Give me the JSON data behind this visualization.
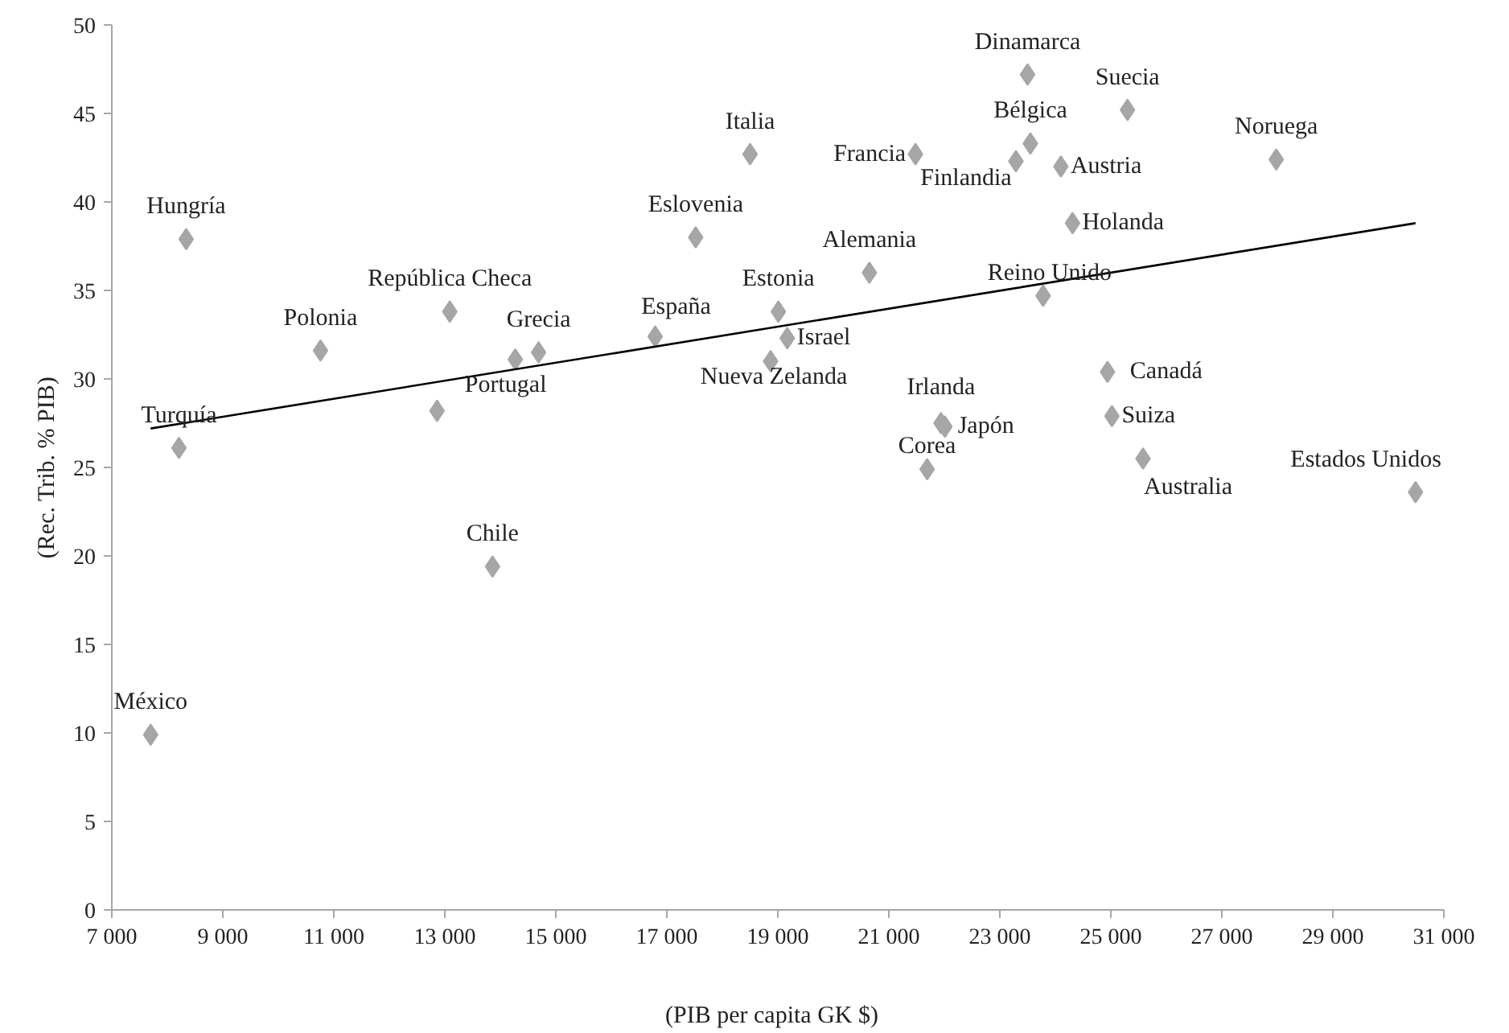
{
  "chart_data": {
    "type": "scatter",
    "xlabel": "(PIB per capita   GK $)",
    "ylabel": "(Rec. Trib. % PIB)",
    "xlim": [
      7000,
      31000
    ],
    "ylim": [
      0,
      50
    ],
    "xticks": [
      {
        "value": 7000,
        "label": "7 000"
      },
      {
        "value": 9000,
        "label": "9 000"
      },
      {
        "value": 11000,
        "label": "11 000"
      },
      {
        "value": 13000,
        "label": "13 000"
      },
      {
        "value": 15000,
        "label": "15 000"
      },
      {
        "value": 17000,
        "label": "17 000"
      },
      {
        "value": 19000,
        "label": "19 000"
      },
      {
        "value": 21000,
        "label": "21 000"
      },
      {
        "value": 23000,
        "label": "23 000"
      },
      {
        "value": 25000,
        "label": "25 000"
      },
      {
        "value": 27000,
        "label": "27 000"
      },
      {
        "value": 29000,
        "label": "29 000"
      },
      {
        "value": 31000,
        "label": "31 000"
      }
    ],
    "yticks": [
      0,
      5,
      10,
      15,
      20,
      25,
      30,
      35,
      40,
      45,
      50
    ],
    "grid": false,
    "legend": false,
    "marker": "diamond",
    "series": [
      {
        "name": "Hungría",
        "color": "#a6a6a6",
        "x": [
          8340
        ],
        "values": [
          37.9
        ]
      },
      {
        "name": "Polonia",
        "color": "#a6a6a6",
        "x": [
          10760
        ],
        "values": [
          31.6
        ]
      },
      {
        "name": "República Checa",
        "color": "#a6a6a6",
        "x": [
          13090
        ],
        "values": [
          33.8
        ]
      },
      {
        "name": "Grecia",
        "color": "#a6a6a6",
        "x": [
          14690
        ],
        "values": [
          31.5
        ]
      },
      {
        "name": "Portugal",
        "color": "#a6a6a6",
        "x": [
          14270
        ],
        "values": [
          31.1
        ]
      },
      {
        "color": "#a6a6a6",
        "x": [
          12860
        ],
        "values": [
          28.2
        ]
      },
      {
        "name": "Turquía",
        "color": "#a6a6a6",
        "x": [
          8210
        ],
        "values": [
          26.1
        ]
      },
      {
        "name": "España",
        "color": "#a6a6a6",
        "x": [
          16790
        ],
        "values": [
          32.4
        ]
      },
      {
        "name": "Eslovenia",
        "color": "#a6a6a6",
        "x": [
          17520
        ],
        "values": [
          38.0
        ]
      },
      {
        "name": "Italia",
        "color": "#a6a6a6",
        "x": [
          18500
        ],
        "values": [
          42.7
        ]
      },
      {
        "name": "Estonia",
        "color": "#a6a6a6",
        "x": [
          19010
        ],
        "values": [
          33.8
        ]
      },
      {
        "name": "Israel",
        "color": "#a6a6a6",
        "x": [
          19170
        ],
        "values": [
          32.3
        ]
      },
      {
        "name": "Nueva Zelanda",
        "color": "#a6a6a6",
        "x": [
          18870
        ],
        "values": [
          31.0
        ]
      },
      {
        "name": "Chile",
        "color": "#a6a6a6",
        "x": [
          13860
        ],
        "values": [
          19.4
        ]
      },
      {
        "name": "México",
        "color": "#a6a6a6",
        "x": [
          7700
        ],
        "values": [
          9.9
        ]
      },
      {
        "name": "Dinamarca",
        "color": "#a6a6a6",
        "x": [
          23500
        ],
        "values": [
          47.2
        ]
      },
      {
        "name": "Suecia",
        "color": "#a6a6a6",
        "x": [
          25300
        ],
        "values": [
          45.2
        ]
      },
      {
        "name": "Bélgica",
        "color": "#a6a6a6",
        "x": [
          23550
        ],
        "values": [
          43.3
        ]
      },
      {
        "name": "Finlandia",
        "color": "#a6a6a6",
        "x": [
          23290
        ],
        "values": [
          42.3
        ]
      },
      {
        "name": "Francia",
        "color": "#a6a6a6",
        "x": [
          21480
        ],
        "values": [
          42.7
        ]
      },
      {
        "name": "Austria",
        "color": "#a6a6a6",
        "x": [
          24100
        ],
        "values": [
          42.0
        ]
      },
      {
        "name": "Noruega",
        "color": "#a6a6a6",
        "x": [
          27980
        ],
        "values": [
          42.4
        ]
      },
      {
        "name": "Holanda",
        "color": "#a6a6a6",
        "x": [
          24310
        ],
        "values": [
          38.8
        ]
      },
      {
        "name": "Alemania",
        "color": "#a6a6a6",
        "x": [
          20650
        ],
        "values": [
          36.0
        ]
      },
      {
        "name": "Reino Unido",
        "color": "#a6a6a6",
        "x": [
          23780
        ],
        "values": [
          34.7
        ]
      },
      {
        "name": "Canadá",
        "color": "#a6a6a6",
        "x": [
          24940
        ],
        "values": [
          30.4
        ]
      },
      {
        "name": "Suiza",
        "color": "#a6a6a6",
        "x": [
          25020
        ],
        "values": [
          27.9
        ]
      },
      {
        "name": "Australia",
        "color": "#a6a6a6",
        "x": [
          25580
        ],
        "values": [
          25.5
        ]
      },
      {
        "name": "Irlanda",
        "color": "#a6a6a6",
        "x": [
          21940
        ],
        "values": [
          27.5
        ]
      },
      {
        "name": "Japón",
        "color": "#a6a6a6",
        "x": [
          22010
        ],
        "values": [
          27.3
        ]
      },
      {
        "name": "Corea",
        "color": "#a6a6a6",
        "x": [
          21690
        ],
        "values": [
          24.9
        ]
      },
      {
        "name": "Estados Unidos",
        "color": "#a6a6a6",
        "x": [
          30490
        ],
        "values": [
          23.6
        ]
      },
      {
        "type": "line",
        "marker": "none",
        "color": "#000000",
        "x": [
          7700,
          30490
        ],
        "values": [
          27.2,
          38.8
        ]
      }
    ]
  }
}
